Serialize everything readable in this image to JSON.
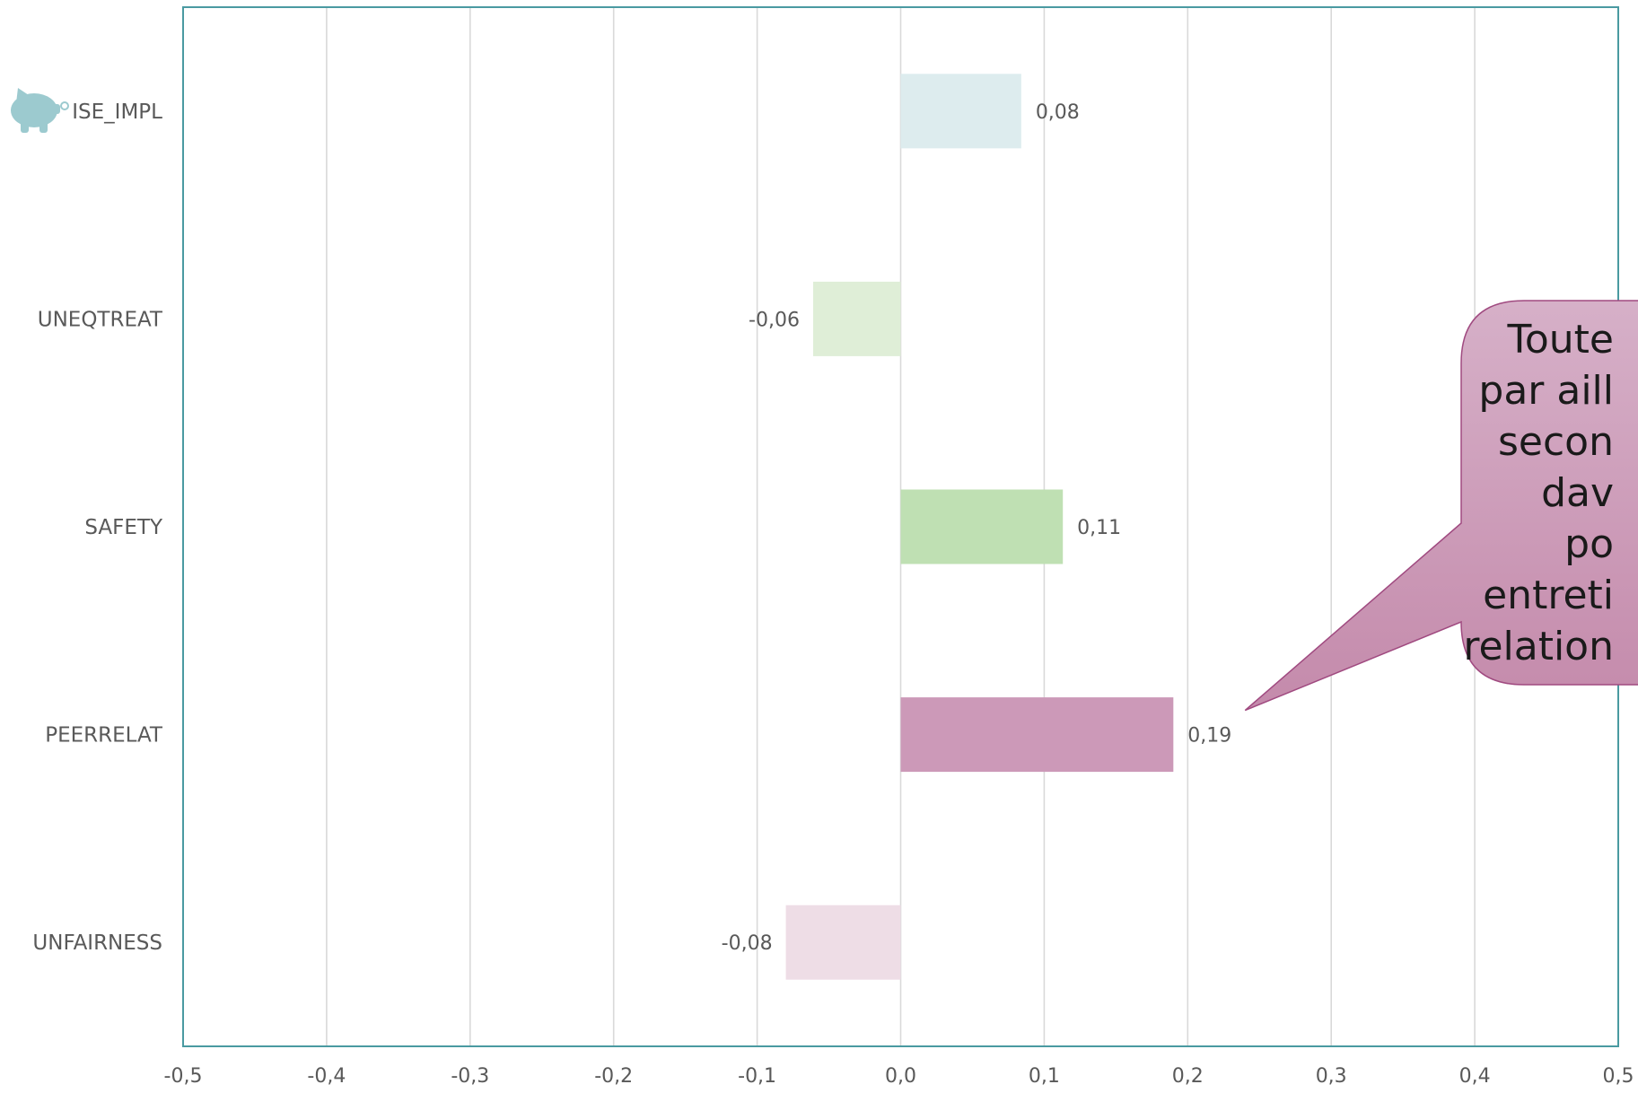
{
  "chart_data": {
    "type": "bar",
    "orientation": "horizontal",
    "categories": [
      "ISE_IMPL",
      "UNEQTREAT",
      "SAFETY",
      "PEERRELAT",
      "UNFAIRNESS"
    ],
    "values": [
      0.084,
      -0.061,
      0.113,
      0.19,
      -0.08
    ],
    "value_labels": [
      "0,08",
      "-0,06",
      "0,11",
      "0,19",
      "-0,08"
    ],
    "bar_colors": [
      "#ddecee",
      "#dfeed7",
      "#bfe0b3",
      "#cc99b8",
      "#eedde6"
    ],
    "xlim": [
      -0.5,
      0.5
    ],
    "x_ticks": [
      -0.5,
      -0.4,
      -0.3,
      -0.2,
      -0.1,
      0.0,
      0.1,
      0.2,
      0.3,
      0.4,
      0.5
    ],
    "x_tick_labels": [
      "-0,5",
      "-0,4",
      "-0,3",
      "-0,2",
      "-0,1",
      "0,0",
      "0,1",
      "0,2",
      "0,3",
      "0,4",
      "0,5"
    ],
    "grid": true,
    "title": "",
    "xlabel": "",
    "ylabel": "",
    "colors": {
      "frame": "#4a9aa1",
      "grid": "#d9d9d9",
      "text": "#595959",
      "piggy": "#9ccacf"
    },
    "icons": [
      "piggy-bank-icon"
    ],
    "callout": {
      "lines": [
        "Toute",
        "par aill",
        "secon",
        "dav",
        "po",
        "entreti",
        "relation"
      ],
      "fill_top": "#d6b0c8",
      "fill_bottom": "#c48aab",
      "stroke": "#a04a80",
      "points_to": "PEERRELAT"
    }
  }
}
